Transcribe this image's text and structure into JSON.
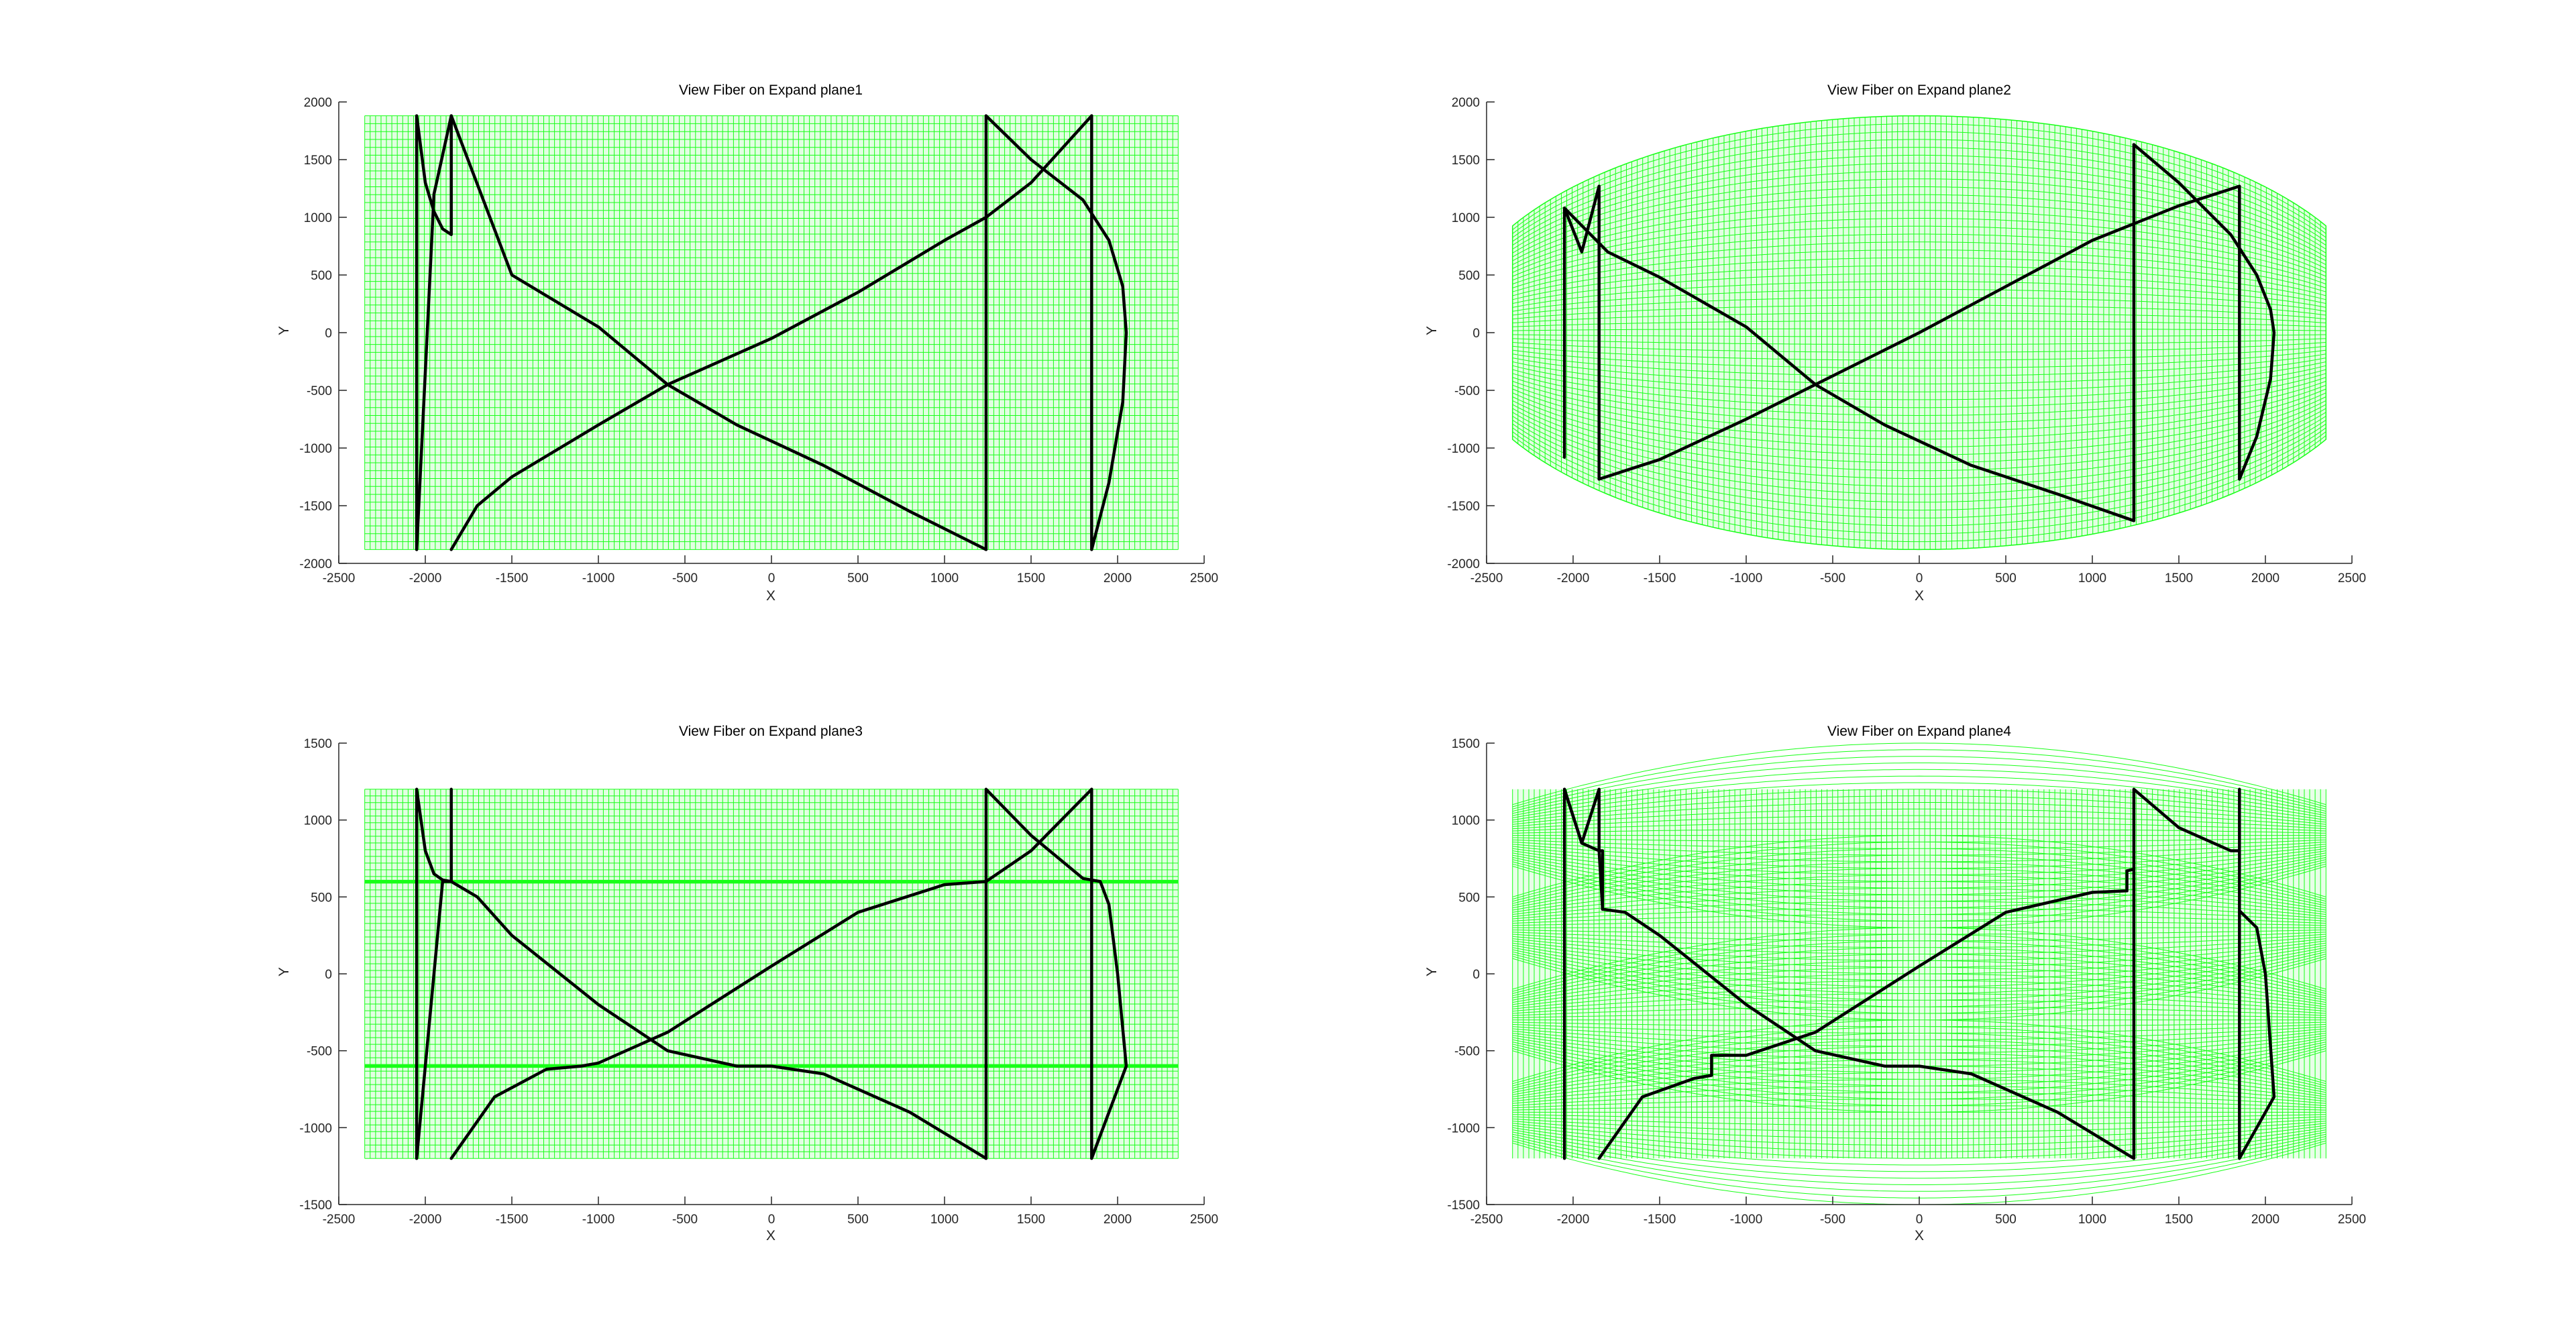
{
  "figure": {
    "background": "#ffffff",
    "mesh_color": "#00ff00",
    "fiber_color": "#000000"
  },
  "chart_data": [
    {
      "type": "line",
      "title": "View Fiber on Expand plane1",
      "xlabel": "X",
      "ylabel": "Y",
      "xlim": [
        -2500,
        2500
      ],
      "ylim": [
        -2000,
        2000
      ],
      "xticks": [
        -2500,
        -2000,
        -1500,
        -1000,
        -500,
        0,
        500,
        1000,
        1500,
        2000,
        2500
      ],
      "yticks": [
        -2000,
        -1500,
        -1000,
        -500,
        0,
        500,
        1000,
        1500,
        2000
      ],
      "grid": false,
      "mesh": {
        "shape": "rectangle",
        "xmin": -2350,
        "xmax": 2350,
        "ymin": -1880,
        "ymax": 1880
      },
      "series": [
        {
          "x": [
            -2050,
            -2050,
            -2000,
            -1950,
            -1900,
            -1850,
            -1850
          ],
          "y": [
            -1880,
            1880,
            1300,
            1050,
            900,
            850,
            1880
          ]
        },
        {
          "x": [
            -2050,
            -1950,
            -1850,
            -1500,
            -1000,
            -600,
            -200,
            300,
            800,
            1240
          ],
          "y": [
            -1880,
            1200,
            1880,
            500,
            50,
            -450,
            -800,
            -1150,
            -1550,
            -1880
          ]
        },
        {
          "x": [
            -1850,
            -1700,
            -1500,
            -1000,
            -600,
            0,
            500,
            1000,
            1240,
            1500,
            1850
          ],
          "y": [
            -1880,
            -1500,
            -1250,
            -800,
            -450,
            -50,
            350,
            800,
            1000,
            1300,
            1880
          ]
        },
        {
          "x": [
            1240,
            1240,
            1500,
            1800,
            1950,
            2030,
            2050,
            2030,
            1950,
            1850,
            1850
          ],
          "y": [
            -1880,
            1880,
            1500,
            1150,
            800,
            400,
            0,
            -600,
            -1300,
            -1880,
            1880
          ]
        }
      ]
    },
    {
      "type": "line",
      "title": "View Fiber on Expand plane2",
      "xlabel": "X",
      "ylabel": "Y",
      "xlim": [
        -2500,
        2500
      ],
      "ylim": [
        -2000,
        2000
      ],
      "xticks": [
        -2500,
        -2000,
        -1500,
        -1000,
        -500,
        0,
        500,
        1000,
        1500,
        2000,
        2500
      ],
      "yticks": [
        -2000,
        -1500,
        -1000,
        -500,
        0,
        500,
        1000,
        1500,
        2000
      ],
      "grid": false,
      "mesh": {
        "shape": "ellipse",
        "xmin": -2350,
        "xmax": 2350,
        "ry": 1880,
        "rx": 2700
      },
      "series": [
        {
          "x": [
            -2050,
            -2050,
            -1950,
            -1850,
            -1850
          ],
          "y": [
            -1080,
            1080,
            700,
            1270,
            -1270
          ]
        },
        {
          "x": [
            -2050,
            -1800,
            -1500,
            -1000,
            -600,
            -200,
            300,
            800,
            1240,
            1240
          ],
          "y": [
            1080,
            700,
            480,
            50,
            -450,
            -800,
            -1150,
            -1400,
            -1630,
            1630
          ]
        },
        {
          "x": [
            -1850,
            -1500,
            -1000,
            -600,
            0,
            500,
            1000,
            1500,
            1850,
            1850
          ],
          "y": [
            -1270,
            -1100,
            -750,
            -450,
            0,
            400,
            800,
            1100,
            1270,
            -1270
          ]
        },
        {
          "x": [
            1240,
            1500,
            1800,
            1950,
            2030,
            2050,
            2030,
            1950,
            1850
          ],
          "y": [
            1630,
            1300,
            850,
            500,
            200,
            0,
            -400,
            -900,
            -1270
          ]
        }
      ]
    },
    {
      "type": "line",
      "title": "View Fiber on Expand plane3",
      "xlabel": "X",
      "ylabel": "Y",
      "xlim": [
        -2500,
        2500
      ],
      "ylim": [
        -1500,
        1500
      ],
      "xticks": [
        -2500,
        -2000,
        -1500,
        -1000,
        -500,
        0,
        500,
        1000,
        1500,
        2000,
        2500
      ],
      "yticks": [
        -1500,
        -1000,
        -500,
        0,
        500,
        1000,
        1500
      ],
      "grid": false,
      "mesh": {
        "shape": "rectangle",
        "xmin": -2350,
        "xmax": 2350,
        "ymin": -1200,
        "ymax": 1200,
        "bands": [
          600,
          -600
        ]
      },
      "series": [
        {
          "x": [
            -2050,
            -2050,
            -2000,
            -1950,
            -1900,
            -1850,
            -1850
          ],
          "y": [
            -1200,
            1200,
            800,
            650,
            610,
            600,
            1200
          ]
        },
        {
          "x": [
            -2050,
            -1900,
            -1850,
            -1700,
            -1500,
            -1000,
            -600,
            -200,
            0,
            300,
            800,
            1240
          ],
          "y": [
            -1200,
            600,
            600,
            500,
            250,
            -200,
            -500,
            -600,
            -600,
            -650,
            -900,
            -1200
          ]
        },
        {
          "x": [
            -1850,
            -1600,
            -1300,
            -1100,
            -1000,
            -600,
            0,
            500,
            1000,
            1240,
            1500,
            1850
          ],
          "y": [
            -1200,
            -800,
            -620,
            -600,
            -580,
            -380,
            50,
            400,
            580,
            600,
            800,
            1200
          ]
        },
        {
          "x": [
            1240,
            1240,
            1500,
            1800,
            1900,
            1950,
            2000,
            2050,
            1850,
            1850
          ],
          "y": [
            -1200,
            1200,
            900,
            620,
            600,
            450,
            0,
            -600,
            -1200,
            1200
          ]
        }
      ]
    },
    {
      "type": "line",
      "title": "View Fiber on Expand plane4",
      "xlabel": "X",
      "ylabel": "Y",
      "xlim": [
        -2500,
        2500
      ],
      "ylim": [
        -1500,
        1500
      ],
      "xticks": [
        -2500,
        -2000,
        -1500,
        -1000,
        -500,
        0,
        500,
        1000,
        1500,
        2000,
        2500
      ],
      "yticks": [
        -1500,
        -1000,
        -500,
        0,
        500,
        1000,
        1500
      ],
      "grid": false,
      "mesh": {
        "shape": "ellipse-bands",
        "xmin": -2350,
        "xmax": 2350,
        "ymin": -1200,
        "ymax": 1200,
        "bands": [
          1200,
          600,
          0,
          -600,
          -1200
        ]
      },
      "series": [
        {
          "x": [
            -2050,
            -2050,
            -1950,
            -1850,
            -1850,
            -1830,
            -1830
          ],
          "y": [
            -1200,
            1200,
            850,
            1200,
            800,
            800,
            420
          ]
        },
        {
          "x": [
            -2050,
            -1950,
            -1850,
            -1830,
            -1700,
            -1500,
            -1000,
            -600,
            -200,
            0,
            300,
            800,
            1240
          ],
          "y": [
            1200,
            850,
            800,
            420,
            400,
            250,
            -200,
            -500,
            -600,
            -600,
            -650,
            -900,
            -1200
          ]
        },
        {
          "x": [
            -1850,
            -1600,
            -1300,
            -1200,
            -1200,
            -1000,
            -600,
            0,
            500,
            1000,
            1200,
            1200,
            1240
          ],
          "y": [
            -1200,
            -800,
            -680,
            -660,
            -530,
            -530,
            -380,
            50,
            400,
            530,
            540,
            670,
            680
          ]
        },
        {
          "x": [
            1240,
            1240,
            1500,
            1800,
            1850,
            1850,
            1950,
            2000,
            2050,
            1850,
            1850
          ],
          "y": [
            -1200,
            1200,
            950,
            800,
            800,
            410,
            300,
            0,
            -800,
            -1200,
            1200
          ]
        }
      ]
    }
  ]
}
